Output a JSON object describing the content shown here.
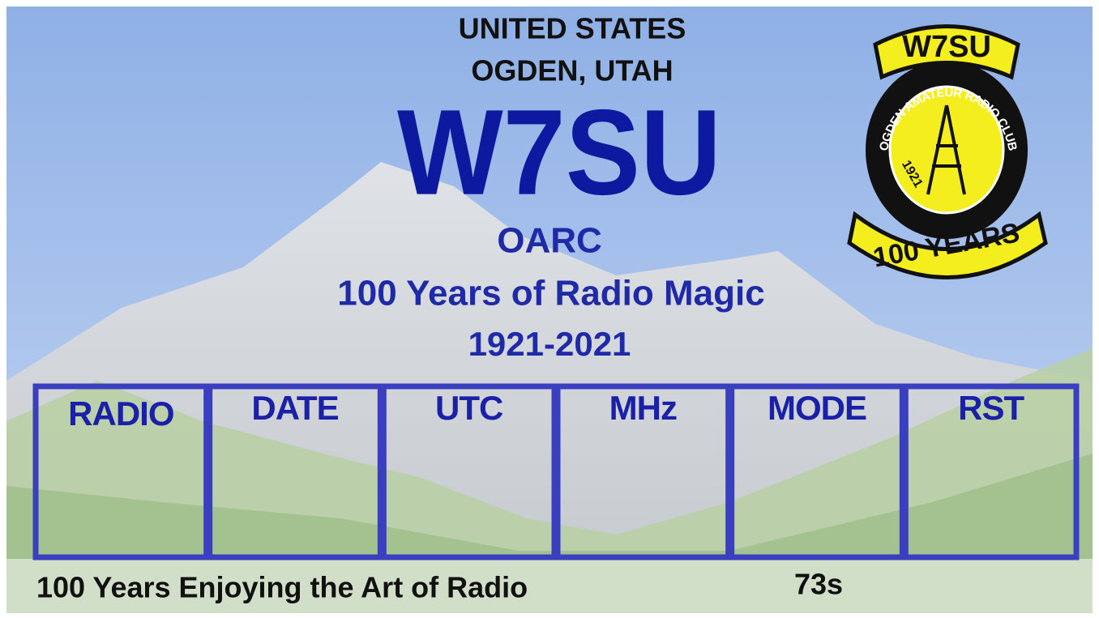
{
  "header": {
    "country": "UNITED STATES",
    "city": "OGDEN, UTAH",
    "callsign": "W7SU",
    "club": "OARC",
    "slogan": "100 Years of Radio Magic",
    "years": "1921-2021"
  },
  "logo": {
    "callsign": "W7SU",
    "club": "OGDEN AMATEUR RADIO CLUB",
    "year": "1921",
    "anniversary": "100 YEARS"
  },
  "table": {
    "columns": [
      "RADIO",
      "DATE",
      "UTC",
      "MHz",
      "MODE",
      "RST"
    ]
  },
  "footer": {
    "motto": "100 Years Enjoying the Art of Radio",
    "signoff": "73s"
  }
}
